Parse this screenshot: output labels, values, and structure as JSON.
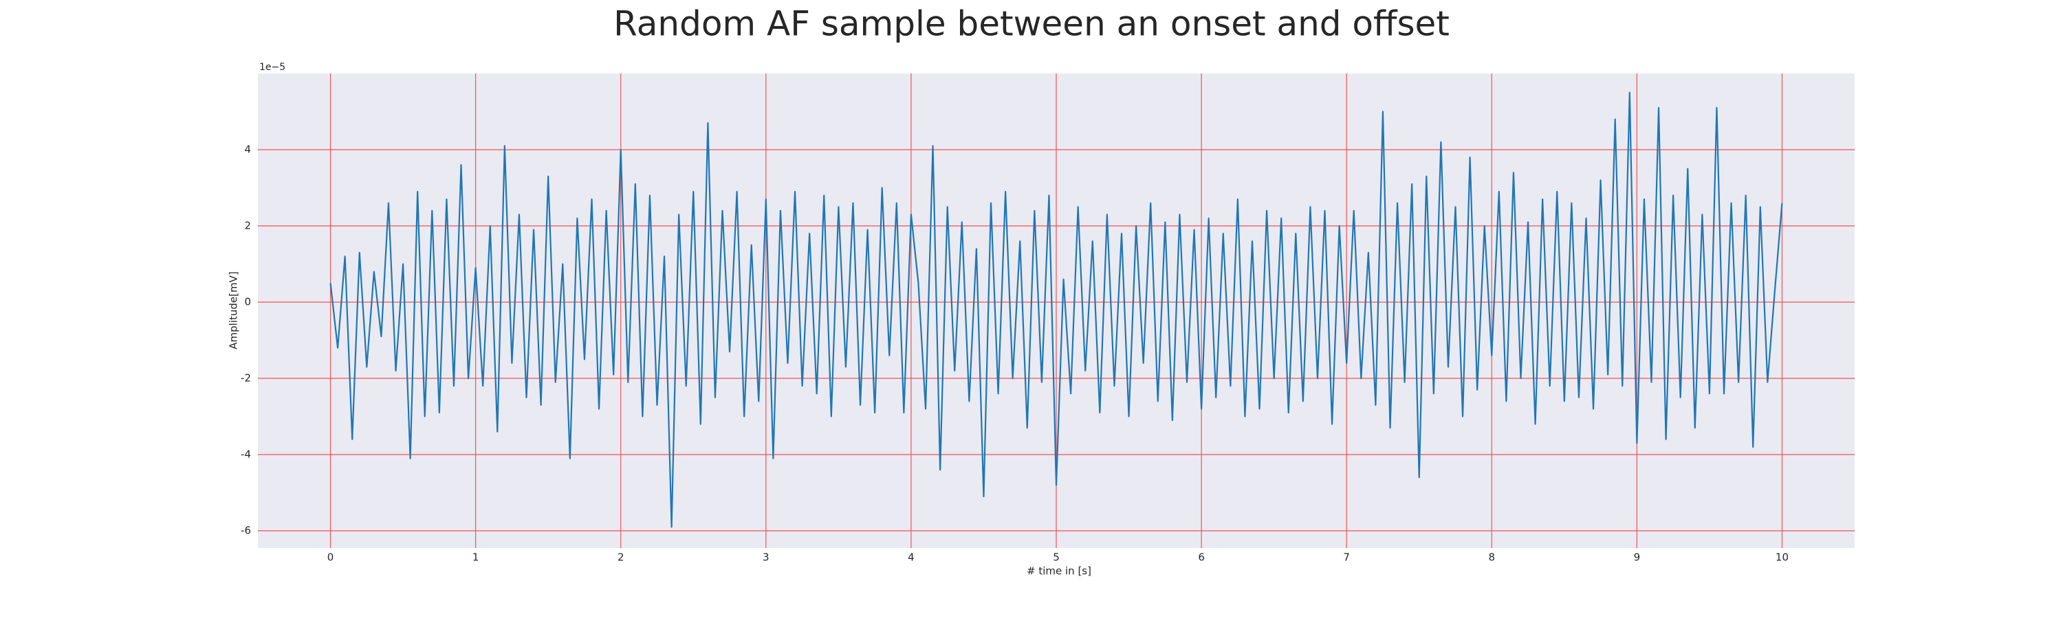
{
  "chart_data": {
    "type": "line",
    "title": "Random AF sample between an onset and offset",
    "x_label": "# time in [s]",
    "y_label": "Amplitude[mV]",
    "y_offset_label": "1e−5",
    "xlim": [
      -0.5,
      10.5
    ],
    "ylim": [
      -6.45,
      6.0
    ],
    "xticks": [
      0,
      1,
      2,
      3,
      4,
      5,
      6,
      7,
      8,
      9,
      10
    ],
    "yticks": [
      -6,
      -4,
      -2,
      0,
      2,
      4
    ],
    "grid": true,
    "grid_color": "#ee5555",
    "background": "#eaeaf2",
    "color": "#1f77b4",
    "x": [
      0,
      0.05,
      0.1,
      0.15,
      0.2,
      0.25,
      0.3,
      0.35,
      0.4,
      0.45,
      0.5,
      0.55,
      0.6,
      0.65,
      0.7,
      0.75,
      0.8,
      0.85,
      0.9,
      0.95,
      1,
      1.05,
      1.1,
      1.15,
      1.2,
      1.25,
      1.3,
      1.35,
      1.4,
      1.45,
      1.5,
      1.55,
      1.6,
      1.65,
      1.7,
      1.75,
      1.8,
      1.85,
      1.9,
      1.95,
      2,
      2.05,
      2.1,
      2.15,
      2.2,
      2.25,
      2.3,
      2.35,
      2.4,
      2.45,
      2.5,
      2.55,
      2.6,
      2.65,
      2.7,
      2.75,
      2.8,
      2.85,
      2.9,
      2.95,
      3,
      3.05,
      3.1,
      3.15,
      3.2,
      3.25,
      3.3,
      3.35,
      3.4,
      3.45,
      3.5,
      3.55,
      3.6,
      3.65,
      3.7,
      3.75,
      3.8,
      3.85,
      3.9,
      3.95,
      4,
      4.05,
      4.1,
      4.15,
      4.2,
      4.25,
      4.3,
      4.35,
      4.4,
      4.45,
      4.5,
      4.55,
      4.6,
      4.65,
      4.7,
      4.75,
      4.8,
      4.85,
      4.9,
      4.95,
      5,
      5.05,
      5.1,
      5.15,
      5.2,
      5.25,
      5.3,
      5.35,
      5.4,
      5.45,
      5.5,
      5.55,
      5.6,
      5.65,
      5.7,
      5.75,
      5.8,
      5.85,
      5.9,
      5.95,
      6,
      6.05,
      6.1,
      6.15,
      6.2,
      6.25,
      6.3,
      6.35,
      6.4,
      6.45,
      6.5,
      6.55,
      6.6,
      6.65,
      6.7,
      6.75,
      6.8,
      6.85,
      6.9,
      6.95,
      7,
      7.05,
      7.1,
      7.15,
      7.2,
      7.25,
      7.3,
      7.35,
      7.4,
      7.45,
      7.5,
      7.55,
      7.6,
      7.65,
      7.7,
      7.75,
      7.8,
      7.85,
      7.9,
      7.95,
      8,
      8.05,
      8.1,
      8.15,
      8.2,
      8.25,
      8.3,
      8.35,
      8.4,
      8.45,
      8.5,
      8.55,
      8.6,
      8.65,
      8.7,
      8.75,
      8.8,
      8.85,
      8.9,
      8.95,
      9,
      9.05,
      9.1,
      9.15,
      9.2,
      9.25,
      9.3,
      9.35,
      9.4,
      9.45,
      9.5,
      9.55,
      9.6,
      9.65,
      9.7,
      9.75,
      9.8,
      9.85,
      9.9,
      9.95,
      10
    ],
    "values": [
      0.5,
      -1.2,
      1.2,
      -3.6,
      1.3,
      -1.7,
      0.8,
      -0.9,
      2.6,
      -1.8,
      1.0,
      -4.1,
      2.9,
      -3.0,
      2.4,
      -2.9,
      2.7,
      -2.2,
      3.6,
      -2.0,
      0.9,
      -2.2,
      2.0,
      -3.4,
      4.1,
      -1.6,
      2.3,
      -2.5,
      1.9,
      -2.7,
      3.3,
      -2.1,
      1.0,
      -4.1,
      2.2,
      -1.5,
      2.7,
      -2.8,
      2.4,
      -1.9,
      4.0,
      -2.1,
      3.1,
      -3.0,
      2.8,
      -2.7,
      1.2,
      -5.9,
      2.3,
      -2.2,
      2.9,
      -3.2,
      4.7,
      -2.5,
      2.4,
      -1.3,
      2.9,
      -3.0,
      1.5,
      -2.6,
      2.7,
      -4.1,
      2.4,
      -1.6,
      2.9,
      -2.2,
      1.8,
      -2.4,
      2.8,
      -3.0,
      2.5,
      -1.7,
      2.6,
      -2.7,
      1.9,
      -2.9,
      3.0,
      -1.4,
      2.6,
      -2.9,
      2.3,
      0.5,
      -2.8,
      4.1,
      -4.4,
      2.5,
      -1.8,
      2.1,
      -2.6,
      1.4,
      -5.1,
      2.6,
      -2.4,
      2.9,
      -2.0,
      1.6,
      -3.3,
      2.4,
      -2.1,
      2.8,
      -4.8,
      0.6,
      -2.4,
      2.5,
      -1.8,
      1.6,
      -2.9,
      2.3,
      -2.2,
      1.8,
      -3.0,
      2.0,
      -1.6,
      2.6,
      -2.6,
      2.1,
      -3.1,
      2.3,
      -2.1,
      1.9,
      -2.8,
      2.2,
      -2.5,
      1.8,
      -2.2,
      2.7,
      -3.0,
      1.6,
      -2.8,
      2.4,
      -2.0,
      2.2,
      -2.9,
      1.8,
      -2.6,
      2.5,
      -2.0,
      2.4,
      -3.2,
      2.0,
      -1.6,
      2.4,
      -2.0,
      1.3,
      -2.7,
      5.0,
      -3.3,
      2.6,
      -2.1,
      3.1,
      -4.6,
      3.3,
      -2.4,
      4.2,
      -1.7,
      2.5,
      -3.0,
      3.8,
      -2.3,
      2.0,
      -1.4,
      2.9,
      -2.6,
      3.4,
      -2.0,
      2.1,
      -3.2,
      2.7,
      -2.2,
      2.9,
      -2.6,
      2.6,
      -2.5,
      2.2,
      -2.8,
      3.2,
      -1.9,
      4.8,
      -2.2,
      5.5,
      -3.7,
      2.7,
      -2.1,
      5.1,
      -3.6,
      2.8,
      -2.5,
      3.5,
      -3.3,
      2.3,
      -2.4,
      5.1,
      -2.4,
      2.6,
      -2.1,
      2.8,
      -3.8,
      2.5,
      -2.1,
      0.3,
      2.6
    ]
  }
}
